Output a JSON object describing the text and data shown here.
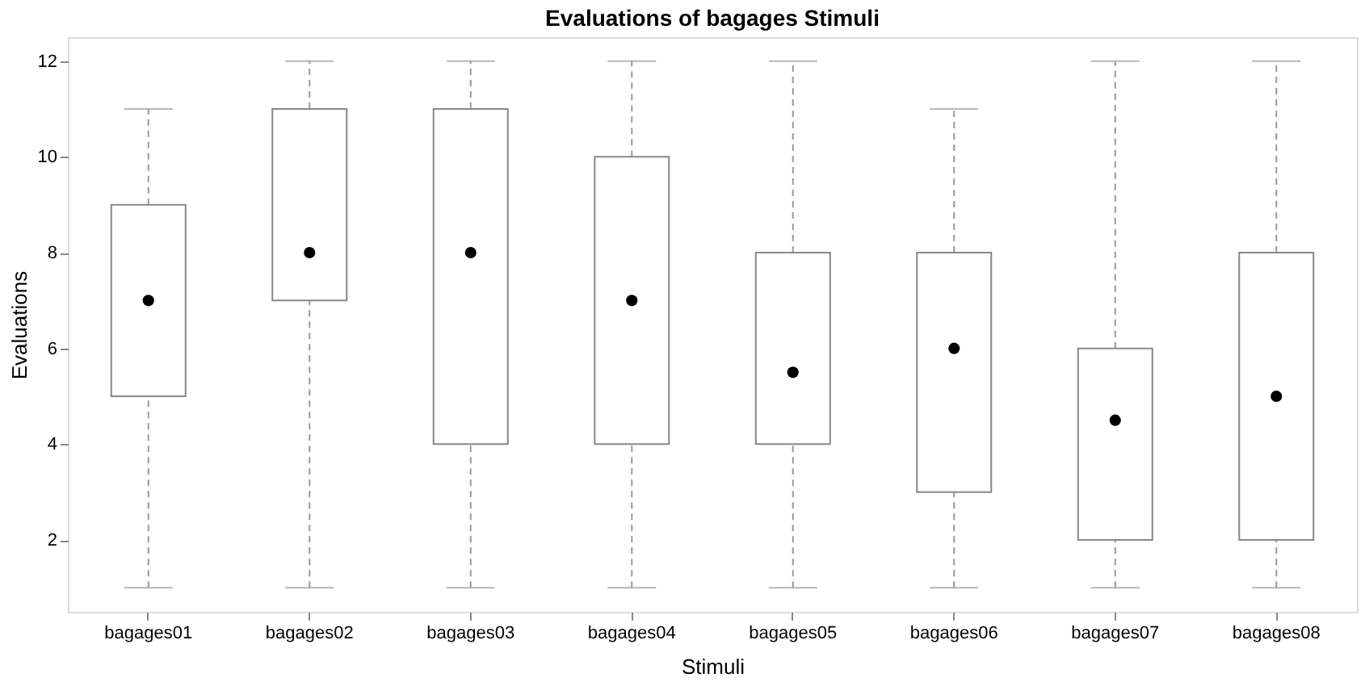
{
  "chart_data": {
    "type": "box",
    "title": "Evaluations of bagages Stimuli",
    "xlabel": "Stimuli",
    "ylabel": "Evaluations",
    "categories": [
      "bagages01",
      "bagages02",
      "bagages03",
      "bagages04",
      "bagages05",
      "bagages06",
      "bagages07",
      "bagages08"
    ],
    "boxes": [
      {
        "low": 1,
        "q1": 5,
        "median": 7,
        "q3": 9,
        "high": 11
      },
      {
        "low": 1,
        "q1": 7,
        "median": 8,
        "q3": 11,
        "high": 12
      },
      {
        "low": 1,
        "q1": 4,
        "median": 8,
        "q3": 11,
        "high": 12
      },
      {
        "low": 1,
        "q1": 4,
        "median": 7,
        "q3": 10,
        "high": 12
      },
      {
        "low": 1,
        "q1": 4,
        "median": 5.5,
        "q3": 8,
        "high": 12
      },
      {
        "low": 1,
        "q1": 3,
        "median": 6,
        "q3": 8,
        "high": 11
      },
      {
        "low": 1,
        "q1": 2,
        "median": 4.5,
        "q3": 6,
        "high": 12
      },
      {
        "low": 1,
        "q1": 2,
        "median": 5,
        "q3": 8,
        "high": 12
      }
    ],
    "ylim": [
      0.5,
      12.5
    ],
    "yticks": [
      2,
      4,
      6,
      8,
      10,
      12
    ],
    "grid": false
  }
}
